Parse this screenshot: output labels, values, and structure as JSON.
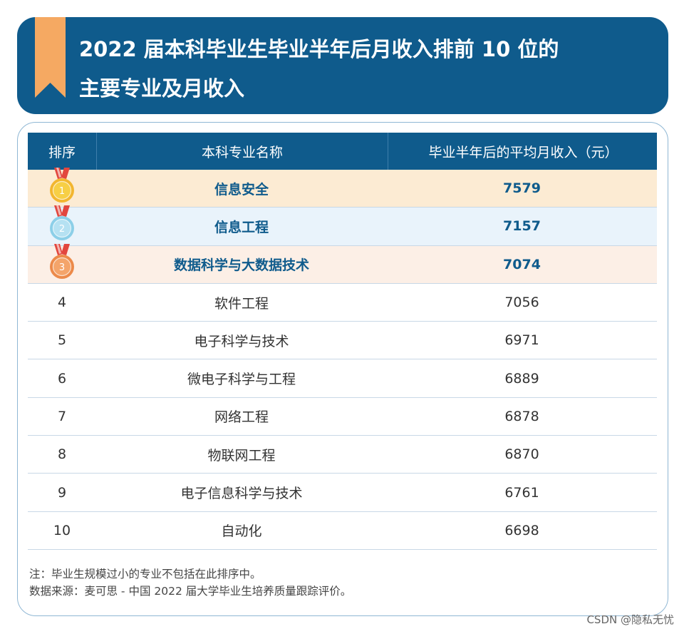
{
  "title_line1": "2022 届本科毕业生毕业半年后月收入排前 10 位的",
  "title_line2": "主要专业及月收入",
  "colors": {
    "banner": "#0f5b8c",
    "ribbon": "#f5a962",
    "gold_row": "#fcebd3",
    "silver_row": "#e9f3fb",
    "bronze_row": "#fcefe6"
  },
  "chart_data": {
    "type": "table",
    "columns": [
      "排序",
      "本科专业名称",
      "毕业半年后的平均月收入（元）"
    ],
    "rows": [
      {
        "rank": "1",
        "medal": "gold",
        "name": "信息安全",
        "value": "7579"
      },
      {
        "rank": "2",
        "medal": "silver",
        "name": "信息工程",
        "value": "7157"
      },
      {
        "rank": "3",
        "medal": "bronze",
        "name": "数据科学与大数据技术",
        "value": "7074"
      },
      {
        "rank": "4",
        "name": "软件工程",
        "value": "7056"
      },
      {
        "rank": "5",
        "name": "电子科学与技术",
        "value": "6971"
      },
      {
        "rank": "6",
        "name": "微电子科学与工程",
        "value": "6889"
      },
      {
        "rank": "7",
        "name": "网络工程",
        "value": "6878"
      },
      {
        "rank": "8",
        "name": "物联网工程",
        "value": "6870"
      },
      {
        "rank": "9",
        "name": "电子信息科学与技术",
        "value": "6761"
      },
      {
        "rank": "10",
        "name": "自动化",
        "value": "6698"
      }
    ]
  },
  "note": "注：毕业生规模过小的专业不包括在此排序中。",
  "source": "数据来源：麦可思 - 中国 2022 届大学毕业生培养质量跟踪评价。",
  "watermark": "CSDN @隐私无忧"
}
